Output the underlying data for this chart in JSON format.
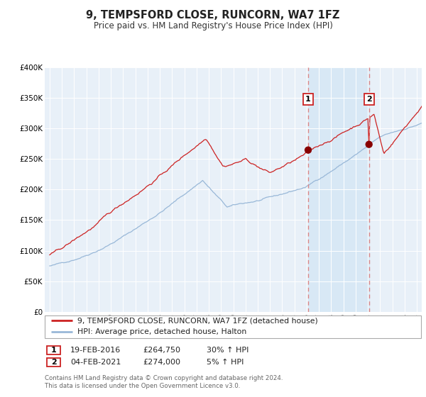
{
  "title": "9, TEMPSFORD CLOSE, RUNCORN, WA7 1FZ",
  "subtitle": "Price paid vs. HM Land Registry's House Price Index (HPI)",
  "legend_line1": "9, TEMPSFORD CLOSE, RUNCORN, WA7 1FZ (detached house)",
  "legend_line2": "HPI: Average price, detached house, Halton",
  "transaction1_date": "19-FEB-2016",
  "transaction1_price": 264750,
  "transaction1_hpi": "30% ↑ HPI",
  "transaction2_date": "04-FEB-2021",
  "transaction2_price": 274000,
  "transaction2_hpi": "5% ↑ HPI",
  "transaction1_x": 2016.12,
  "transaction2_x": 2021.09,
  "ylim_min": 0,
  "ylim_max": 400000,
  "xlim_min": 1994.6,
  "xlim_max": 2025.4,
  "background_color": "#ffffff",
  "plot_bg_color": "#e8f0f8",
  "grid_color": "#ffffff",
  "hpi_line_color": "#99b8d8",
  "property_line_color": "#cc2222",
  "vline_color": "#dd8888",
  "highlight_bg": "#d8e8f5",
  "transaction_dot_color": "#880000",
  "footer_text": "Contains HM Land Registry data © Crown copyright and database right 2024.\nThis data is licensed under the Open Government Licence v3.0."
}
